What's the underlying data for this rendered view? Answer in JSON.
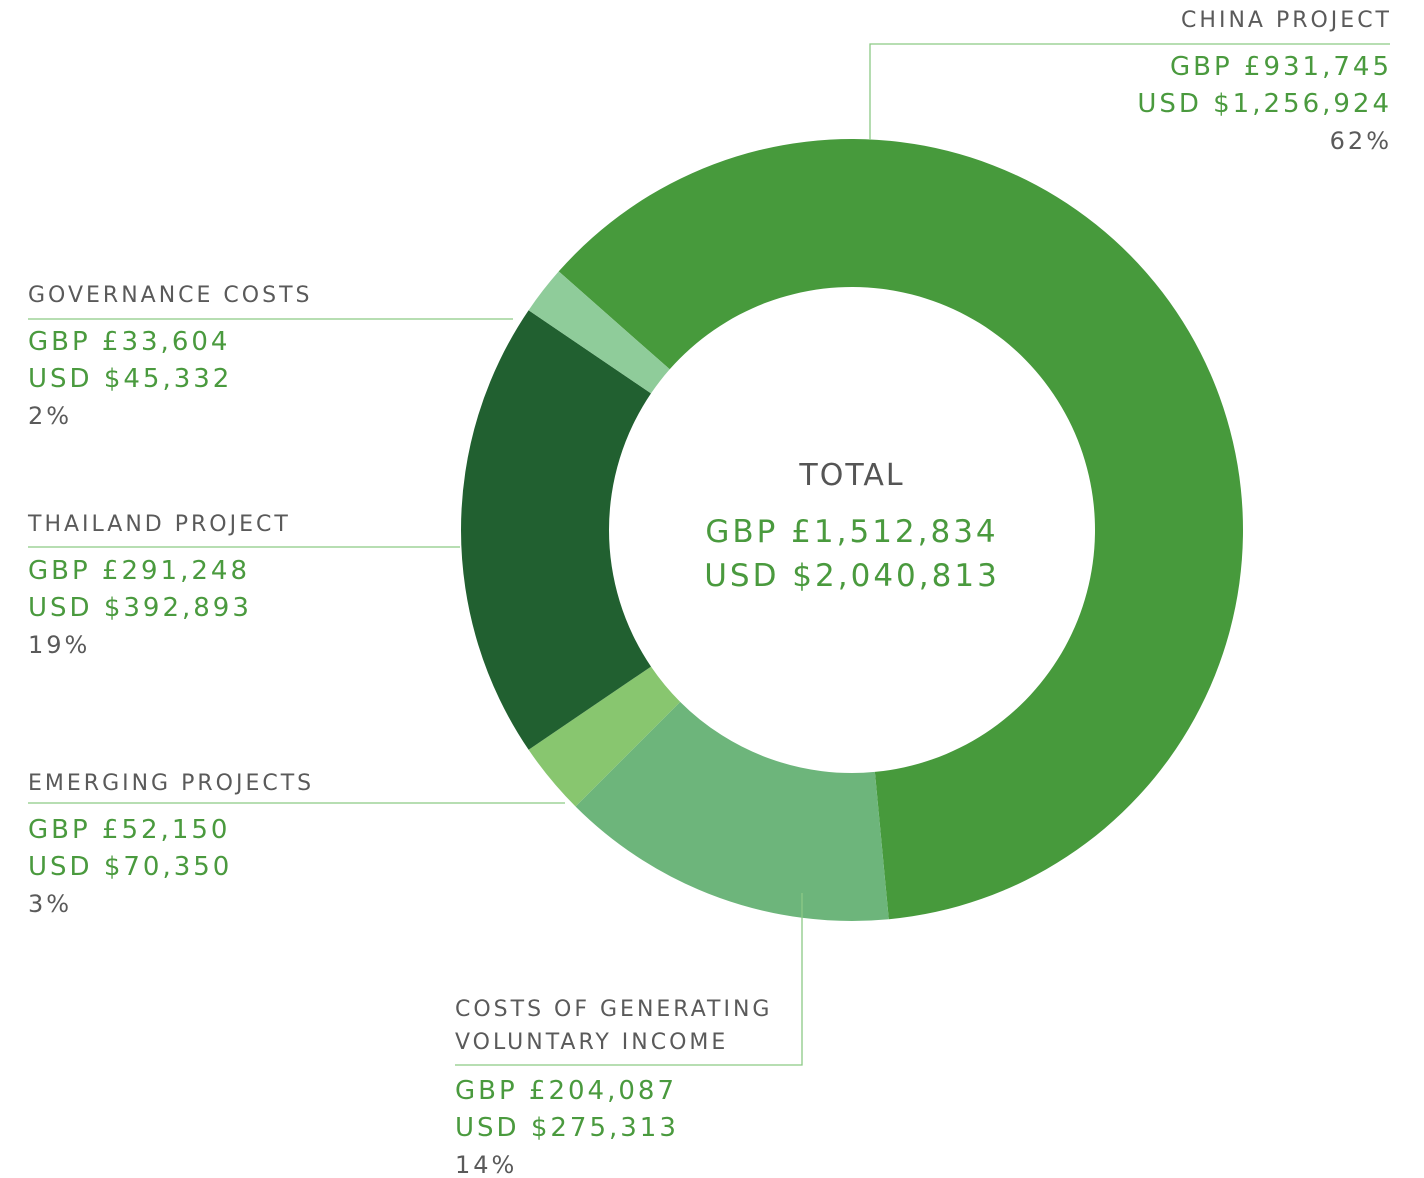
{
  "chart_data": {
    "type": "pie",
    "categories": [
      "CHINA PROJECT",
      "COSTS OF GENERATING VOLUNTARY INCOME",
      "EMERGING PROJECTS",
      "THAILAND PROJECT",
      "GOVERNANCE COSTS"
    ],
    "values": [
      62,
      14,
      3,
      19,
      2
    ],
    "value_labels": [
      "62%",
      "14%",
      "3%",
      "19%",
      "2%"
    ],
    "gbp_labels": [
      "GBP £931,745",
      "GBP £204,087",
      "GBP £52,150",
      "GBP £291,248",
      "GBP £33,604"
    ],
    "usd_labels": [
      "USD $1,256,924",
      "USD $275,313",
      "USD $70,350",
      "USD $392,893",
      "USD $45,332"
    ],
    "colors": [
      "#479a3c",
      "#6db57b",
      "#88c66f",
      "#216030",
      "#8fcc9a"
    ],
    "center_label": "TOTAL",
    "center_gbp": "GBP £1,512,834",
    "center_usd": "USD $2,040,813"
  }
}
